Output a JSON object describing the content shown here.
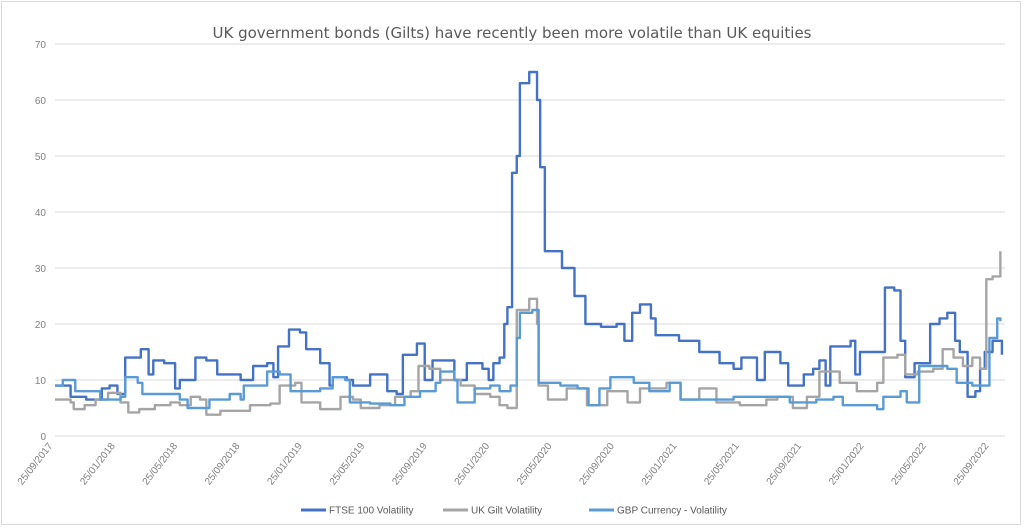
{
  "chart_data": {
    "type": "line",
    "title": "UK government bonds (Gilts) have recently been more volatile than UK equities",
    "xlabel": "",
    "ylabel": "",
    "x_unit": "months since 25/09/2017",
    "xlim": [
      0,
      61
    ],
    "ylim": [
      0,
      70
    ],
    "yticks": [
      0,
      10,
      20,
      30,
      40,
      50,
      60,
      70
    ],
    "xtick_labels": [
      "25/09/2017",
      "25/01/2018",
      "25/05/2018",
      "25/09/2018",
      "25/01/2019",
      "25/05/2019",
      "25/09/2019",
      "25/01/2020",
      "25/05/2020",
      "25/09/2020",
      "25/01/2021",
      "25/05/2021",
      "25/09/2021",
      "25/01/2022",
      "25/05/2022",
      "25/09/2022"
    ],
    "xtick_step_months": 4,
    "grid": true,
    "legend_position": "bottom",
    "series": [
      {
        "name": "FTSE 100 Volatility",
        "color": "#4472C4",
        "points": [
          [
            0,
            9
          ],
          [
            1,
            7
          ],
          [
            2,
            6.5
          ],
          [
            3,
            8.5
          ],
          [
            3.5,
            9
          ],
          [
            4,
            7.5
          ],
          [
            4.5,
            14
          ],
          [
            5.5,
            15.5
          ],
          [
            6,
            11
          ],
          [
            6.3,
            13.5
          ],
          [
            7,
            13
          ],
          [
            7.7,
            8.5
          ],
          [
            8,
            10
          ],
          [
            9,
            14
          ],
          [
            9.7,
            13.5
          ],
          [
            10.4,
            11
          ],
          [
            11.4,
            11
          ],
          [
            11.9,
            10
          ],
          [
            12.7,
            12.5
          ],
          [
            13.6,
            13
          ],
          [
            14,
            10.5
          ],
          [
            14.3,
            16
          ],
          [
            15,
            19
          ],
          [
            15.7,
            18.5
          ],
          [
            16.1,
            15.5
          ],
          [
            17,
            13
          ],
          [
            17.6,
            9
          ],
          [
            17.8,
            10.5
          ],
          [
            18.7,
            10
          ],
          [
            19.1,
            9
          ],
          [
            20.2,
            11
          ],
          [
            21.3,
            8
          ],
          [
            21.9,
            7.5
          ],
          [
            22.3,
            14.5
          ],
          [
            23.2,
            16.5
          ],
          [
            23.7,
            10
          ],
          [
            24.2,
            13.5
          ],
          [
            25.2,
            13.5
          ],
          [
            25.6,
            10
          ],
          [
            26.4,
            13
          ],
          [
            27.4,
            12
          ],
          [
            27.8,
            10
          ],
          [
            28.1,
            13
          ],
          [
            28.5,
            14
          ],
          [
            28.8,
            20
          ],
          [
            29,
            23
          ],
          [
            29.3,
            47
          ],
          [
            29.6,
            50
          ],
          [
            29.8,
            63
          ],
          [
            30.4,
            65
          ],
          [
            30.9,
            60
          ],
          [
            31.1,
            48
          ],
          [
            31.4,
            33
          ],
          [
            32.5,
            30
          ],
          [
            33.3,
            25
          ],
          [
            34,
            20
          ],
          [
            35,
            19.5
          ],
          [
            36,
            20
          ],
          [
            36.5,
            17
          ],
          [
            37,
            22
          ],
          [
            37.5,
            23.5
          ],
          [
            38.2,
            21
          ],
          [
            38.5,
            18
          ],
          [
            40,
            17
          ],
          [
            41.3,
            15
          ],
          [
            42.6,
            13
          ],
          [
            43.5,
            12
          ],
          [
            44,
            14
          ],
          [
            45,
            10
          ],
          [
            45.5,
            15
          ],
          [
            46.5,
            13
          ],
          [
            47,
            9
          ],
          [
            48,
            11
          ],
          [
            48.6,
            12
          ],
          [
            49,
            13.5
          ],
          [
            49.4,
            9
          ],
          [
            49.7,
            16
          ],
          [
            51,
            17
          ],
          [
            51.3,
            11
          ],
          [
            51.6,
            15
          ],
          [
            52.6,
            15
          ],
          [
            53.2,
            26.5
          ],
          [
            53.8,
            26
          ],
          [
            54.2,
            17
          ],
          [
            54.5,
            10.5
          ],
          [
            55.1,
            13
          ],
          [
            56.1,
            20
          ],
          [
            56.7,
            21
          ],
          [
            57.2,
            22
          ],
          [
            57.7,
            17
          ],
          [
            58,
            15
          ],
          [
            58.5,
            7
          ],
          [
            59,
            8
          ],
          [
            59.3,
            12
          ],
          [
            59.6,
            15
          ],
          [
            60.1,
            17
          ],
          [
            60.7,
            14.5
          ]
        ]
      },
      {
        "name": "UK Gilt Volatility",
        "color": "#A5A5A5",
        "points": [
          [
            0,
            6.5
          ],
          [
            1,
            6
          ],
          [
            1.2,
            4.8
          ],
          [
            1.9,
            5.5
          ],
          [
            2.6,
            6.5
          ],
          [
            3.4,
            7.7
          ],
          [
            4.2,
            6
          ],
          [
            4.7,
            4.2
          ],
          [
            5.4,
            4.8
          ],
          [
            6.4,
            5.5
          ],
          [
            7.4,
            6
          ],
          [
            8,
            5.5
          ],
          [
            8.7,
            7
          ],
          [
            9.3,
            6.5
          ],
          [
            9.7,
            3.8
          ],
          [
            10.6,
            4.5
          ],
          [
            11.9,
            4.5
          ],
          [
            12.5,
            5.5
          ],
          [
            13.8,
            5.8
          ],
          [
            14.4,
            9
          ],
          [
            15.4,
            9.5
          ],
          [
            15.8,
            6
          ],
          [
            17,
            4.8
          ],
          [
            18.3,
            7
          ],
          [
            19.1,
            6.5
          ],
          [
            19.6,
            5
          ],
          [
            20.8,
            5.5
          ],
          [
            21.8,
            7
          ],
          [
            22.8,
            8
          ],
          [
            23.3,
            12.5
          ],
          [
            24,
            12
          ],
          [
            24.7,
            10
          ],
          [
            26,
            9
          ],
          [
            26.9,
            7.5
          ],
          [
            27.9,
            7
          ],
          [
            28.5,
            5.5
          ],
          [
            29,
            5
          ],
          [
            29.6,
            22.5
          ],
          [
            30.4,
            24.5
          ],
          [
            30.9,
            20
          ],
          [
            31,
            9
          ],
          [
            31.6,
            6.5
          ],
          [
            32.8,
            8.5
          ],
          [
            34.1,
            5.5
          ],
          [
            35.4,
            8
          ],
          [
            36.7,
            6
          ],
          [
            37.5,
            8.5
          ],
          [
            39.2,
            9.5
          ],
          [
            40.1,
            6.5
          ],
          [
            41.3,
            8.5
          ],
          [
            42.4,
            6
          ],
          [
            43.9,
            5.5
          ],
          [
            45.6,
            6.5
          ],
          [
            46.3,
            7
          ],
          [
            47.3,
            5
          ],
          [
            48.2,
            7
          ],
          [
            49,
            11.5
          ],
          [
            49.9,
            11.5
          ],
          [
            50.3,
            9.5
          ],
          [
            51.4,
            8
          ],
          [
            52.7,
            9.5
          ],
          [
            53.1,
            14
          ],
          [
            54,
            14.5
          ],
          [
            54.5,
            11
          ],
          [
            55.3,
            11.5
          ],
          [
            56.3,
            12
          ],
          [
            56.9,
            15.5
          ],
          [
            57.6,
            14
          ],
          [
            58.2,
            12.5
          ],
          [
            58.8,
            14
          ],
          [
            59.3,
            12
          ],
          [
            59.7,
            28
          ],
          [
            60.1,
            28.5
          ],
          [
            60.6,
            33
          ]
        ]
      },
      {
        "name": "GBP Currency - Volatility",
        "color": "#5B9BD5",
        "points": [
          [
            0,
            9
          ],
          [
            0.5,
            10
          ],
          [
            1.3,
            8
          ],
          [
            2.2,
            8
          ],
          [
            2.9,
            6.5
          ],
          [
            4.2,
            7
          ],
          [
            4.5,
            10.5
          ],
          [
            5.3,
            9.5
          ],
          [
            5.6,
            7.5
          ],
          [
            7.1,
            7.5
          ],
          [
            8,
            6.5
          ],
          [
            8.5,
            5
          ],
          [
            9.9,
            6.5
          ],
          [
            11.2,
            7.5
          ],
          [
            11.9,
            6.5
          ],
          [
            12.1,
            9
          ],
          [
            12.8,
            9
          ],
          [
            13.6,
            11.5
          ],
          [
            14.4,
            11
          ],
          [
            15.1,
            8
          ],
          [
            17,
            8.5
          ],
          [
            17.8,
            10.5
          ],
          [
            18.6,
            10
          ],
          [
            18.9,
            6
          ],
          [
            20.2,
            5.8
          ],
          [
            21.5,
            5.5
          ],
          [
            22.4,
            7
          ],
          [
            23.4,
            8
          ],
          [
            24.4,
            9.5
          ],
          [
            24.7,
            11.5
          ],
          [
            25.6,
            10
          ],
          [
            25.8,
            6
          ],
          [
            26.9,
            8.5
          ],
          [
            27.9,
            9
          ],
          [
            28.5,
            8
          ],
          [
            29.2,
            9
          ],
          [
            29.6,
            17.5
          ],
          [
            29.8,
            22
          ],
          [
            30.6,
            22.5
          ],
          [
            31,
            9.5
          ],
          [
            32.4,
            9
          ],
          [
            33.5,
            8.5
          ],
          [
            34.2,
            5.5
          ],
          [
            34.9,
            8.5
          ],
          [
            35.6,
            10.5
          ],
          [
            37.1,
            9.5
          ],
          [
            38.1,
            8
          ],
          [
            39.4,
            9.5
          ],
          [
            40.1,
            6.5
          ],
          [
            41.3,
            6.5
          ],
          [
            43.5,
            7
          ],
          [
            45.6,
            7
          ],
          [
            47.1,
            6
          ],
          [
            48.8,
            6.5
          ],
          [
            49.9,
            7
          ],
          [
            50.5,
            5.5
          ],
          [
            52.7,
            4.8
          ],
          [
            53.1,
            7
          ],
          [
            54.2,
            8
          ],
          [
            54.6,
            6
          ],
          [
            55.4,
            12.5
          ],
          [
            56.3,
            12.5
          ],
          [
            57.2,
            12
          ],
          [
            57.8,
            9.5
          ],
          [
            58.8,
            9
          ],
          [
            59.5,
            9
          ],
          [
            59.9,
            17.5
          ],
          [
            60.4,
            21
          ],
          [
            60.6,
            20.5
          ]
        ]
      }
    ]
  }
}
